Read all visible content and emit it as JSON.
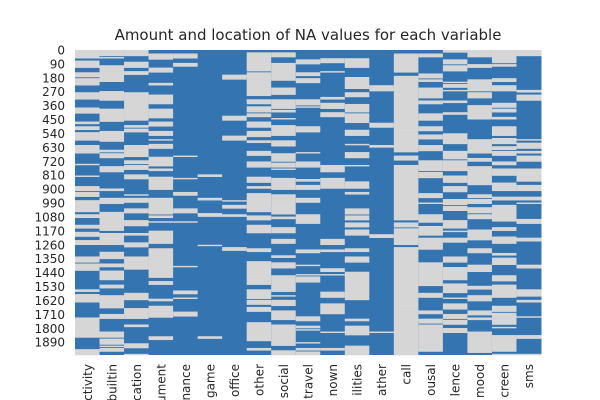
{
  "chart_data": {
    "type": "heatmap",
    "title": "Amount and location of NA values for each variable",
    "colors": {
      "missing": "#3474b0",
      "present": "#d6d6d6"
    },
    "row_count": 1973,
    "y_tick_labels": [
      "0",
      "90",
      "180",
      "270",
      "360",
      "450",
      "540",
      "630",
      "720",
      "810",
      "900",
      "990",
      "1080",
      "1170",
      "1260",
      "1350",
      "1440",
      "1530",
      "1620",
      "1710",
      "1800",
      "1890"
    ],
    "columns": [
      {
        "label": "ctivity",
        "missing_fraction": 0.55
      },
      {
        "label": "builtin",
        "missing_fraction": 0.55
      },
      {
        "label": "cation",
        "missing_fraction": 0.55
      },
      {
        "label": "ument",
        "missing_fraction": 0.6
      },
      {
        "label": "nance",
        "missing_fraction": 0.92
      },
      {
        "label": "game",
        "missing_fraction": 0.95
      },
      {
        "label": "office",
        "missing_fraction": 0.95
      },
      {
        "label": "other",
        "missing_fraction": 0.45
      },
      {
        "label": "social",
        "missing_fraction": 0.45
      },
      {
        "label": "travel",
        "missing_fraction": 0.65
      },
      {
        "label": "nown",
        "missing_fraction": 0.85
      },
      {
        "label": "ilities",
        "missing_fraction": 0.55
      },
      {
        "label": "ather",
        "missing_fraction": 0.95
      },
      {
        "label": "call",
        "missing_fraction": 0.08
      },
      {
        "label": "ousal",
        "missing_fraction": 0.55
      },
      {
        "label": "lence",
        "missing_fraction": 0.55
      },
      {
        "label": "mood",
        "missing_fraction": 0.55
      },
      {
        "label": "creen",
        "missing_fraction": 0.55
      },
      {
        "label": "sms",
        "missing_fraction": 0.7
      }
    ]
  }
}
